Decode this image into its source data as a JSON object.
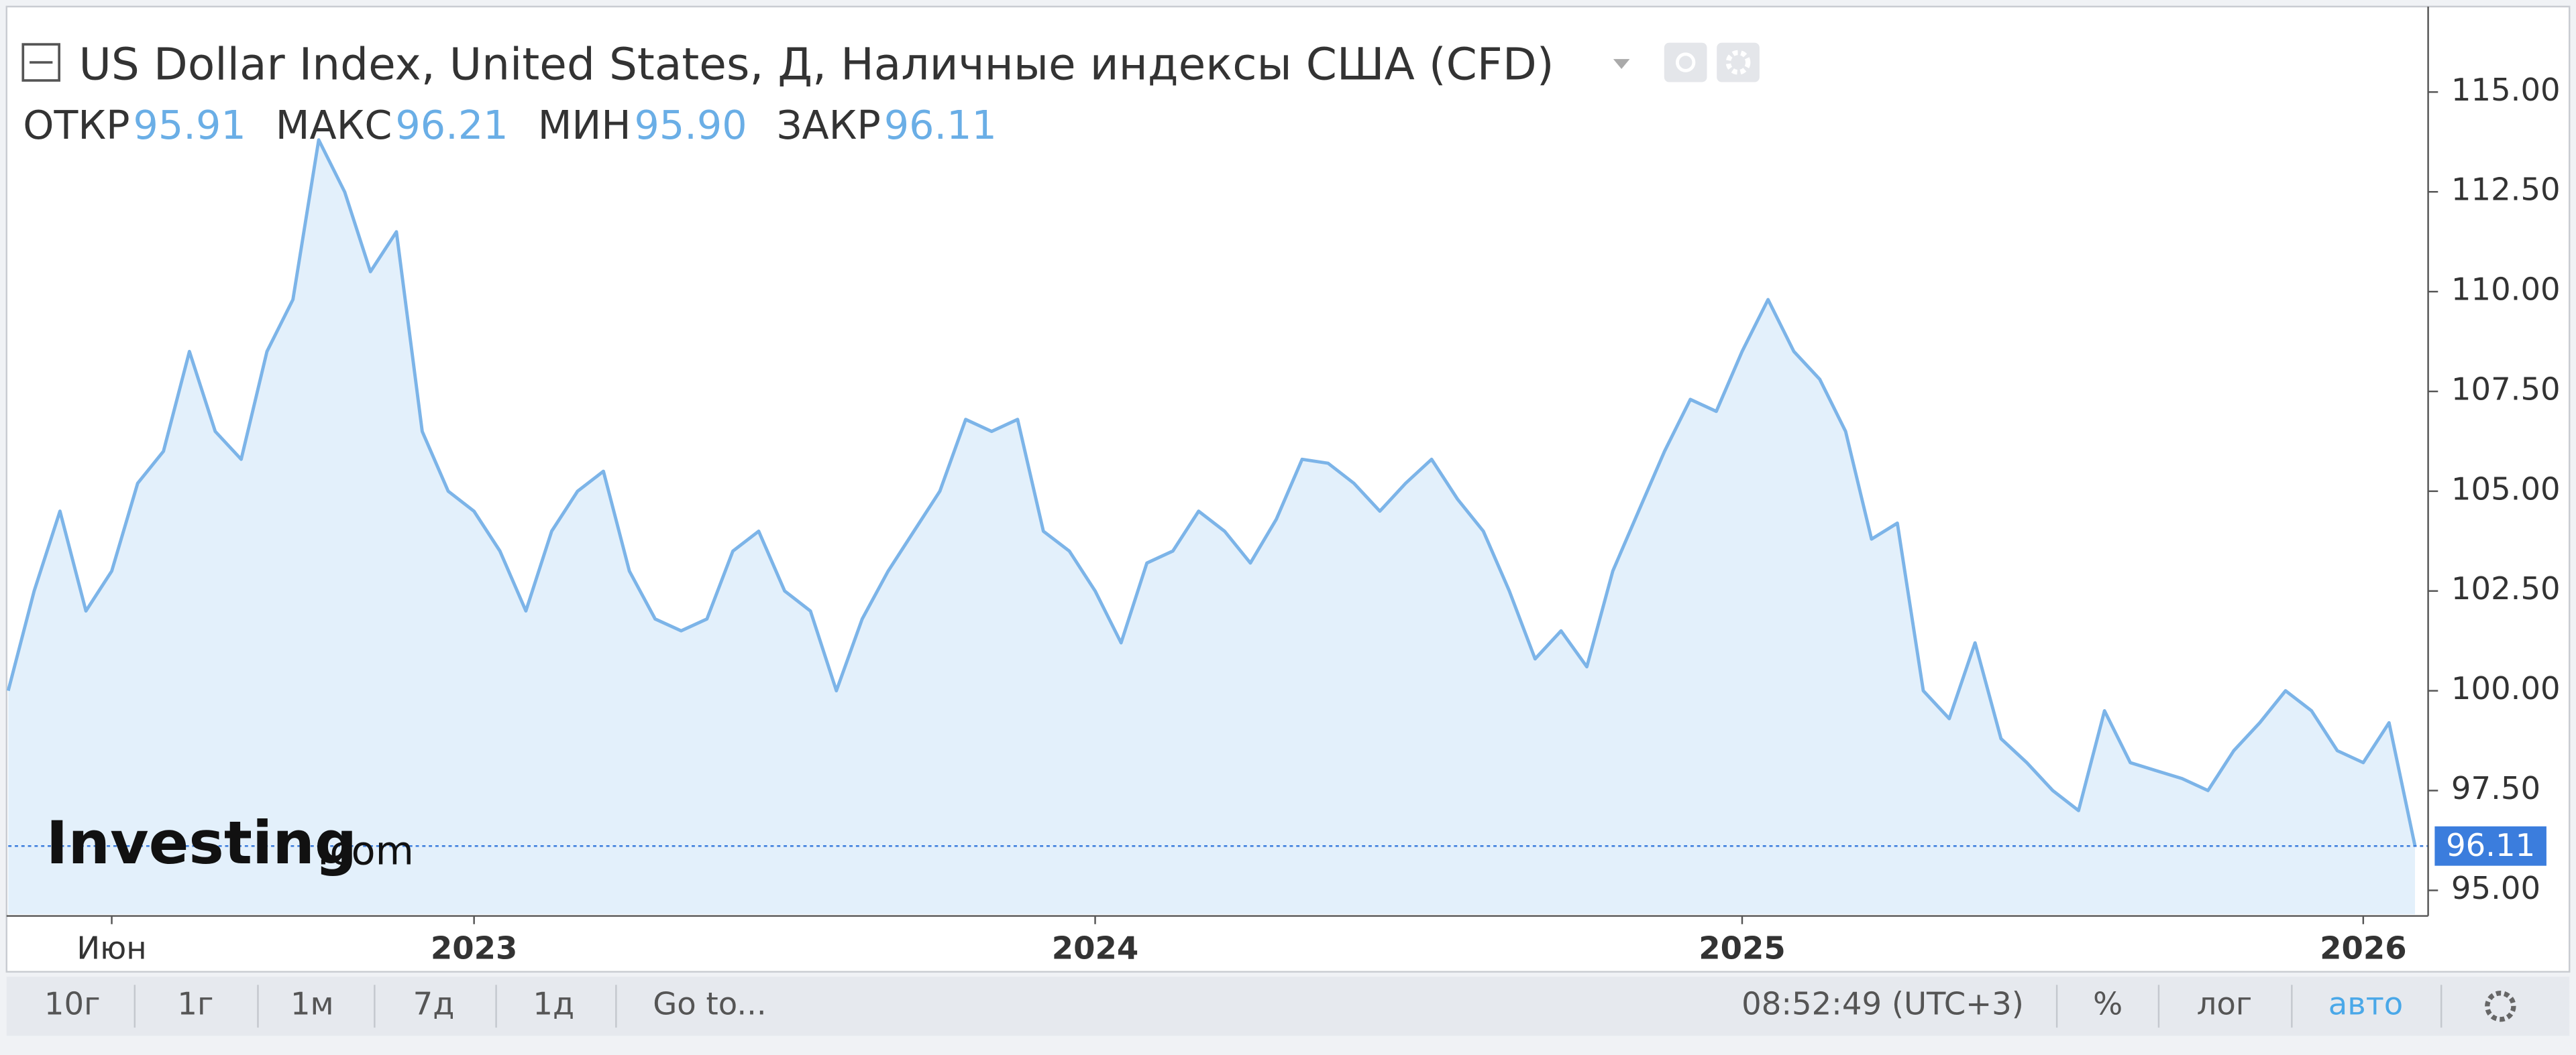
{
  "chart_data": {
    "type": "line",
    "title": "US Dollar Index, United States, Д, Наличные индексы США (CFD)",
    "ohlc": [
      {
        "name": "ОТКР",
        "value": "95.91"
      },
      {
        "name": "МАКС",
        "value": "96.21"
      },
      {
        "name": "МИН",
        "value": "95.90"
      },
      {
        "name": "ЗАКР",
        "value": "96.11"
      }
    ],
    "logo": {
      "main": "Investing",
      "suffix": ".com"
    },
    "categories": [
      null,
      null,
      null,
      null,
      "Июн",
      null,
      null,
      null,
      null,
      null,
      null,
      null,
      null,
      null,
      null,
      null,
      null,
      null,
      "2023",
      null,
      null,
      null,
      null,
      null,
      null,
      null,
      null,
      null,
      null,
      null,
      null,
      null,
      null,
      null,
      null,
      null,
      null,
      null,
      null,
      null,
      null,
      null,
      "2024",
      null,
      null,
      null,
      null,
      null,
      null,
      null,
      null,
      null,
      null,
      null,
      null,
      null,
      null,
      null,
      null,
      null,
      null,
      null,
      null,
      null,
      null,
      null,
      null,
      "2025",
      null,
      null,
      null,
      null,
      null,
      null,
      null,
      null,
      null,
      null,
      null,
      null,
      null,
      null,
      null,
      null,
      null,
      null,
      null,
      null,
      null,
      null,
      null,
      "2026",
      null,
      null
    ],
    "series": [
      {
        "name": "US Dollar Index",
        "color": "#7cb4e8",
        "fill": "#e3f0fb",
        "values": [
          100,
          102.5,
          104.5,
          102,
          103,
          105.2,
          106,
          108.5,
          106.5,
          105.8,
          108.5,
          109.8,
          113.8,
          112.5,
          110.5,
          111.5,
          106.5,
          105,
          104.5,
          103.5,
          102,
          104,
          105,
          105.5,
          103,
          101.8,
          101.5,
          101.8,
          103.5,
          104,
          102.5,
          102,
          100,
          101.8,
          103,
          104,
          105,
          106.8,
          106.5,
          106.8,
          104,
          103.5,
          102.5,
          101.2,
          103.2,
          103.5,
          104.5,
          104,
          103.2,
          104.3,
          105.8,
          105.7,
          105.2,
          104.5,
          105.2,
          105.8,
          104.8,
          104,
          102.5,
          100.8,
          101.5,
          100.6,
          103,
          104.5,
          106,
          107.3,
          107,
          108.5,
          109.8,
          108.5,
          107.8,
          106.5,
          103.8,
          104.2,
          100,
          99.3,
          101.2,
          98.8,
          98.2,
          97.5,
          97,
          99.5,
          98.2,
          98,
          97.8,
          97.5,
          98.5,
          99.2,
          100,
          99.5,
          98.5,
          98.2,
          99.2,
          96.11
        ]
      }
    ],
    "ylim": [
      94.4,
      117.1
    ],
    "yticks": [
      {
        "value": 95,
        "label": "95.00"
      },
      {
        "value": 97.5,
        "label": "97.50"
      },
      {
        "value": 100,
        "label": "100.00"
      },
      {
        "value": 102.5,
        "label": "102.50"
      },
      {
        "value": 105,
        "label": "105.00"
      },
      {
        "value": 107.5,
        "label": "107.50"
      },
      {
        "value": 110,
        "label": "110.00"
      },
      {
        "value": 112.5,
        "label": "112.50"
      },
      {
        "value": 115,
        "label": "115.00"
      }
    ],
    "last_price_color": "#3b7ddd",
    "toolbar": {
      "ranges": [
        "10г",
        "1г",
        "1м",
        "7д",
        "1д"
      ],
      "goto": "Go to...",
      "clock": "08:52:49 (UTC+3)",
      "percent": "%",
      "log": "лог",
      "auto": "авто"
    }
  }
}
